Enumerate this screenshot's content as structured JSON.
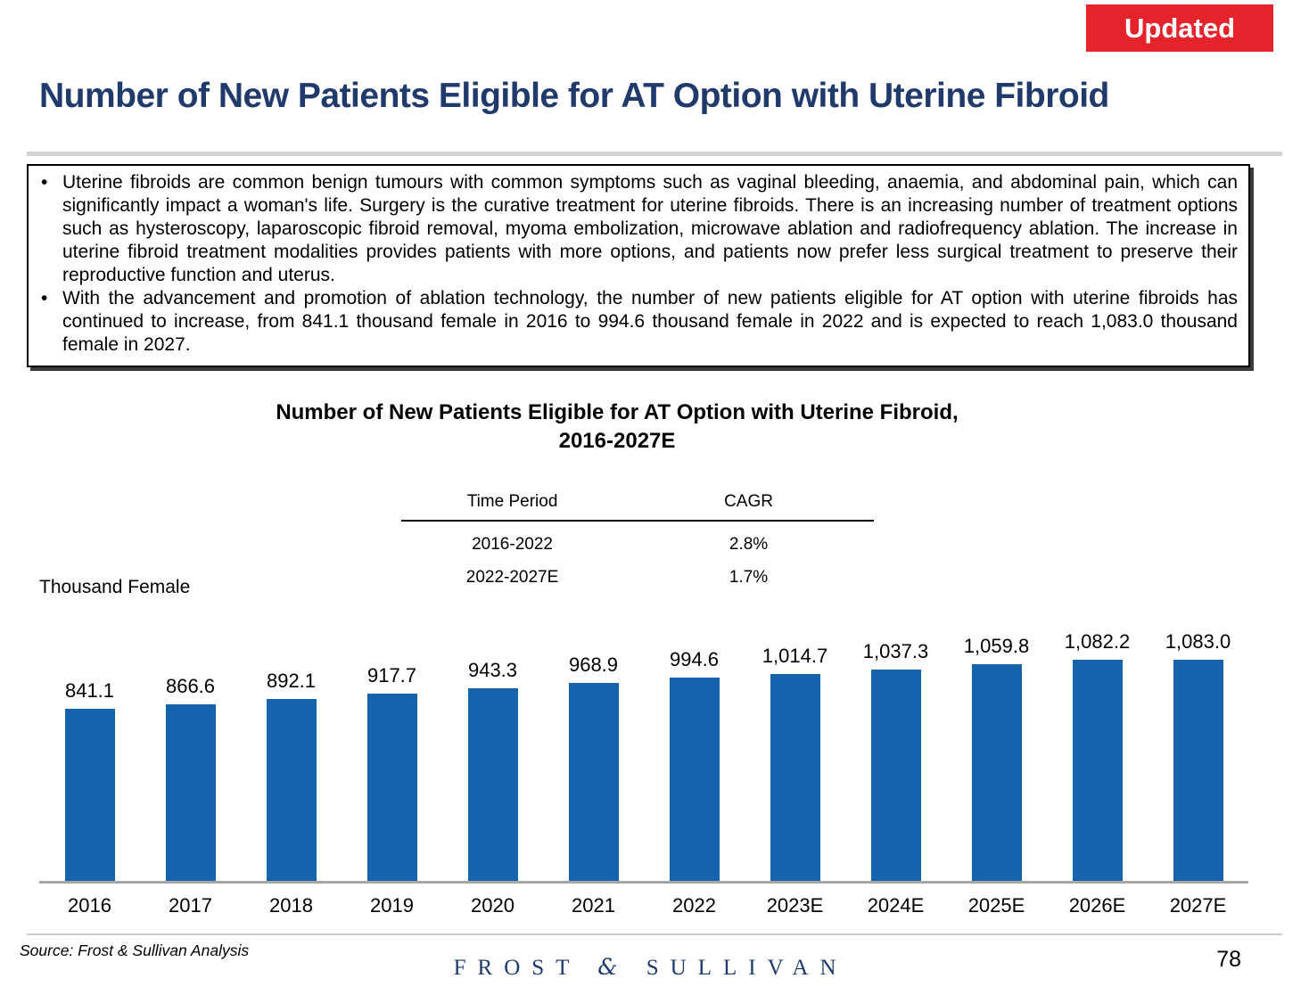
{
  "badge": {
    "label": "Updated"
  },
  "header": {
    "title": "Number of New Patients Eligible for AT Option with Uterine Fibroid"
  },
  "summary_box": {
    "bullets": [
      "Uterine fibroids are common benign tumours with common symptoms such as vaginal bleeding, anaemia, and abdominal pain, which can significantly impact a woman's life. Surgery is the curative treatment for uterine fibroids. There is an increasing number of treatment options such as hysteroscopy, laparoscopic fibroid removal, myoma embolization, microwave ablation and radiofrequency ablation. The increase in uterine fibroid treatment modalities provides patients with more options, and patients now prefer less surgical treatment to preserve their reproductive function and uterus.",
      "With the advancement and promotion of ablation technology, the number of new patients eligible for AT option with uterine fibroids has continued to increase, from 841.1 thousand female in 2016 to 994.6 thousand female in 2022 and is expected to reach 1,083.0 thousand female in 2027."
    ]
  },
  "chart_data": {
    "type": "bar",
    "title": "Number of New Patients Eligible for AT Option with Uterine Fibroid, 2016-2027E",
    "title_line1": "Number of New Patients Eligible for AT Option with Uterine Fibroid,",
    "title_line2": "2016-2027E",
    "ylabel": "Thousand Female",
    "xlabel": "",
    "categories": [
      "2016",
      "2017",
      "2018",
      "2019",
      "2020",
      "2021",
      "2022",
      "2023E",
      "2024E",
      "2025E",
      "2026E",
      "2027E"
    ],
    "values": [
      841.1,
      866.6,
      892.1,
      917.7,
      943.3,
      968.9,
      994.6,
      1014.7,
      1037.3,
      1059.8,
      1082.2,
      1083.0
    ],
    "value_labels": [
      "841.1",
      "866.6",
      "892.1",
      "917.7",
      "943.3",
      "968.9",
      "994.6",
      "1,014.7",
      "1,037.3",
      "1,059.8",
      "1,082.2",
      "1,083.0"
    ],
    "ylim": [
      0,
      1200
    ],
    "grid": false,
    "legend": "none",
    "bar_color": "#1463ac",
    "cagr_table": {
      "headers": [
        "Time Period",
        "CAGR"
      ],
      "rows": [
        [
          "2016-2022",
          "2.8%"
        ],
        [
          "2022-2027E",
          "1.7%"
        ]
      ]
    }
  },
  "colors": {
    "accent_red": "#e5232b",
    "title_navy": "#1f3a6b",
    "bar_blue": "#1463ac"
  },
  "footer": {
    "source": "Source: Frost & Sullivan Analysis",
    "brand_left": "FROST",
    "brand_amp": "&",
    "brand_right": "SULLIVAN",
    "page_number": "78"
  }
}
